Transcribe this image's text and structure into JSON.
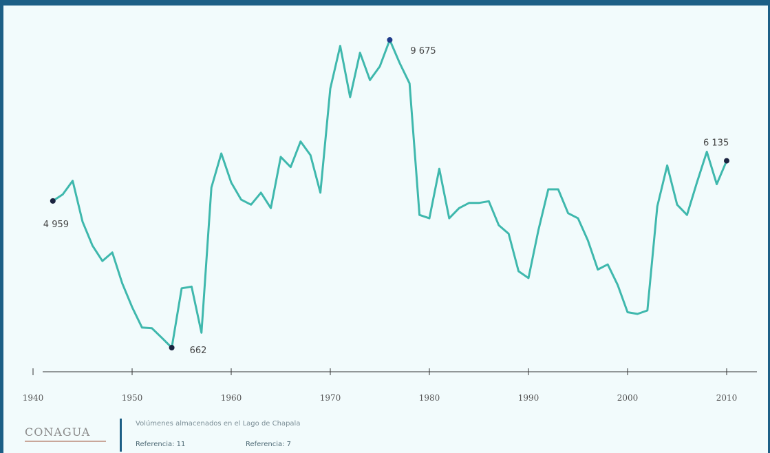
{
  "header": {
    "title": ""
  },
  "chart_data": {
    "type": "line",
    "title": "",
    "xlabel": "",
    "ylabel": "",
    "xlim": [
      1940,
      2012
    ],
    "ylim": [
      0,
      10500
    ],
    "x_ticks": [
      1940,
      1950,
      1960,
      1970,
      1980,
      1990,
      2000,
      2010
    ],
    "grid": false,
    "series": [
      {
        "color": "#3fb8ad",
        "x": [
          1942,
          1943,
          1944,
          1945,
          1946,
          1947,
          1948,
          1949,
          1950,
          1951,
          1952,
          1953,
          1954,
          1955,
          1956,
          1957,
          1958,
          1959,
          1960,
          1961,
          1962,
          1963,
          1964,
          1965,
          1966,
          1967,
          1968,
          1969,
          1970,
          1971,
          1972,
          1973,
          1974,
          1975,
          1976,
          1977,
          1978,
          1979,
          1980,
          1981,
          1982,
          1983,
          1984,
          1985,
          1986,
          1987,
          1988,
          1989,
          1990,
          1991,
          1992,
          1993,
          1994,
          1995,
          1996,
          1997,
          1998,
          1999,
          2000,
          2001,
          2002,
          2003,
          2004,
          2005,
          2006,
          2007,
          2008,
          2009,
          2010
        ],
        "y": [
          4959,
          5150,
          5550,
          4350,
          3650,
          3200,
          3450,
          2550,
          1850,
          1250,
          1230,
          950,
          662,
          2400,
          2450,
          1100,
          5350,
          6350,
          5500,
          5000,
          4850,
          5200,
          4750,
          6250,
          5950,
          6700,
          6300,
          5200,
          8250,
          9500,
          8000,
          9300,
          8500,
          8900,
          9675,
          9000,
          8400,
          4550,
          4450,
          5900,
          4450,
          4750,
          4900,
          4900,
          4950,
          4250,
          4000,
          2900,
          2700,
          4100,
          5300,
          5300,
          4600,
          4450,
          3800,
          2950,
          3100,
          2500,
          1700,
          1650,
          1750,
          4800,
          6000,
          4850,
          4550,
          5500,
          6400,
          5450,
          6135
        ]
      }
    ],
    "annotations": [
      {
        "x": 1942,
        "y": 4959,
        "text": "4 959"
      },
      {
        "x": 1954,
        "y": 662,
        "text": "662"
      },
      {
        "x": 1976,
        "y": 9675,
        "text": "9 675"
      },
      {
        "x": 2010,
        "y": 6135,
        "text": "6 135"
      }
    ],
    "colors": {
      "line": "#3fb8ad",
      "point": "#1b2340",
      "point_peak": "#1f3a8a",
      "axis": "#333333"
    }
  },
  "footer": {
    "logo_text": "CONAGUA",
    "caption": "Volúmenes almacenados en el Lago de Chapala",
    "ref1": "Referencia: 11",
    "ref2": "Referencia: 7"
  }
}
